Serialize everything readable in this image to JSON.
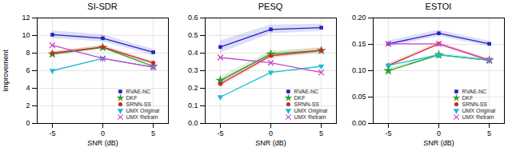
{
  "chart_data": [
    {
      "type": "line",
      "title": "SI-SDR",
      "xlabel": "SNR (dB)",
      "ylabel": "Improvement",
      "x": [
        -5,
        0,
        5
      ],
      "xlim": [
        -6.5,
        6.5
      ],
      "xticks": [
        -5,
        0,
        5
      ],
      "ylim": [
        0,
        12
      ],
      "yticks": [
        0,
        2,
        4,
        6,
        8,
        10,
        12
      ],
      "grid": true,
      "legend": "lower right",
      "series": [
        {
          "name": "RVAE-NC",
          "color": "#2222cc",
          "marker": "square",
          "values": [
            10.1,
            9.7,
            8.1
          ],
          "std": [
            0.45,
            0.4,
            0.35
          ]
        },
        {
          "name": "DKF",
          "color": "#2ca02c",
          "marker": "star",
          "values": [
            7.9,
            8.65,
            6.5
          ],
          "std": [
            0.25,
            0.22,
            0.22
          ]
        },
        {
          "name": "SRNN-SS",
          "color": "#d62728",
          "marker": "circle",
          "values": [
            8.0,
            8.7,
            6.9
          ],
          "std": [
            0.2,
            0.18,
            0.18
          ]
        },
        {
          "name": "UMX Original",
          "color": "#17becf",
          "marker": "triangle-down",
          "values": [
            6.0,
            7.4,
            6.4
          ]
        },
        {
          "name": "UMX Retrain",
          "color": "#cc44cc",
          "marker": "x",
          "values": [
            8.9,
            7.4,
            6.4
          ]
        }
      ]
    },
    {
      "type": "line",
      "title": "PESQ",
      "xlabel": "SNR (dB)",
      "x": [
        -5,
        0,
        5
      ],
      "xlim": [
        -6.5,
        6.5
      ],
      "xticks": [
        -5,
        0,
        5
      ],
      "ylim": [
        0.0,
        0.6
      ],
      "yticks": [
        {
          "value": 0,
          "label": "0.0"
        },
        0.1,
        0.2,
        0.3,
        0.4,
        0.5,
        0.6
      ],
      "grid": true,
      "legend": "lower right",
      "series": [
        {
          "name": "RVAE-NC",
          "color": "#2222cc",
          "marker": "square",
          "values": [
            0.435,
            0.535,
            0.545
          ],
          "std": [
            0.035,
            0.025,
            0.02
          ]
        },
        {
          "name": "DKF",
          "color": "#2ca02c",
          "marker": "star",
          "values": [
            0.245,
            0.395,
            0.415
          ],
          "std": [
            0.02,
            0.018,
            0.016
          ]
        },
        {
          "name": "SRNN-SS",
          "color": "#d62728",
          "marker": "circle",
          "values": [
            0.225,
            0.385,
            0.415
          ],
          "std": [
            0.018,
            0.016,
            0.014
          ]
        },
        {
          "name": "UMX Original",
          "color": "#17becf",
          "marker": "triangle-down",
          "values": [
            0.15,
            0.29,
            0.325
          ]
        },
        {
          "name": "UMX Retrain",
          "color": "#cc44cc",
          "marker": "x",
          "values": [
            0.375,
            0.345,
            0.29
          ]
        }
      ]
    },
    {
      "type": "line",
      "title": "ESTOI",
      "xlabel": "SNR (dB)",
      "x": [
        -5,
        0,
        5
      ],
      "xlim": [
        -6.5,
        6.5
      ],
      "xticks": [
        -5,
        0,
        5
      ],
      "ylim": [
        0.0,
        0.2
      ],
      "yticks": [
        {
          "value": 0,
          "label": "0.00"
        },
        0.05,
        {
          "value": 0.1,
          "label": "0.10"
        },
        0.15,
        {
          "value": 0.2,
          "label": "0.20"
        }
      ],
      "grid": true,
      "legend": "lower right",
      "series": [
        {
          "name": "RVAE-NC",
          "color": "#2222cc",
          "marker": "square",
          "values": [
            0.151,
            0.171,
            0.151
          ],
          "std": [
            0.006,
            0.006,
            0.005
          ]
        },
        {
          "name": "DKF",
          "color": "#2ca02c",
          "marker": "star",
          "values": [
            0.1,
            0.13,
            0.12
          ],
          "std": [
            0.004,
            0.003,
            0.003
          ]
        },
        {
          "name": "SRNN-SS",
          "color": "#d62728",
          "marker": "circle",
          "values": [
            0.11,
            0.151,
            0.12
          ],
          "std": [
            0.004,
            0.003,
            0.003
          ]
        },
        {
          "name": "UMX Original",
          "color": "#17becf",
          "marker": "triangle-down",
          "values": [
            0.11,
            0.13,
            0.12
          ]
        },
        {
          "name": "UMX Retrain",
          "color": "#cc44cc",
          "marker": "x",
          "values": [
            0.151,
            0.151,
            0.12
          ]
        }
      ]
    }
  ]
}
